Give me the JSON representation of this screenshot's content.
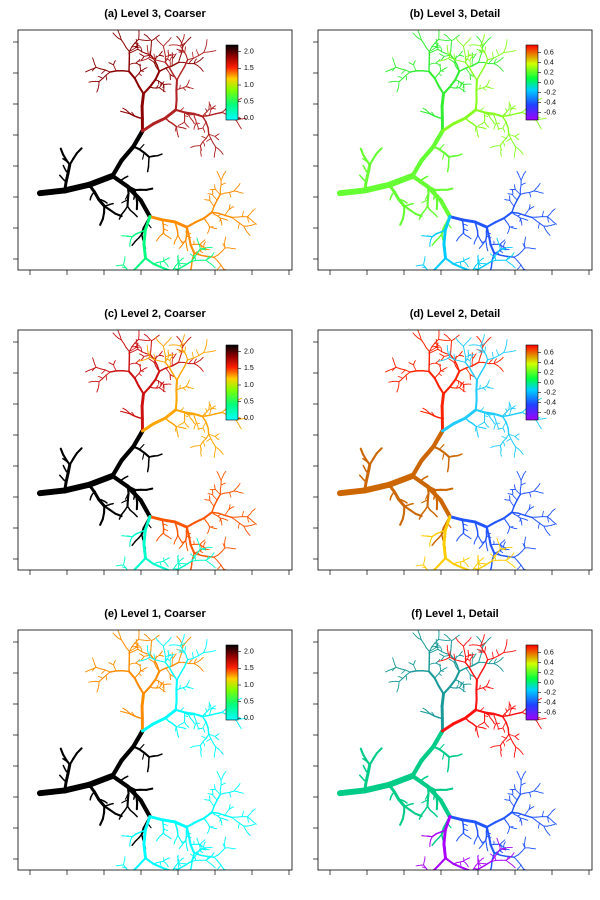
{
  "panels": [
    {
      "title": "(a) Level 3, Coarser",
      "clim": [
        -0.05,
        2.2
      ],
      "colorbar_ticks": [
        {
          "value": 2,
          "label": "2.0"
        },
        {
          "value": 1.5,
          "label": "1.5"
        },
        {
          "value": 1,
          "label": "1.0"
        },
        {
          "value": 0.5,
          "label": "0.5"
        },
        {
          "value": 0,
          "label": "0.0"
        }
      ]
    },
    {
      "title": "(b) Level 3, Detail",
      "clim": [
        -0.75,
        0.75
      ],
      "colorbar_ticks": [
        {
          "value": 0.6,
          "label": "0.6"
        },
        {
          "value": 0.4,
          "label": "0.4"
        },
        {
          "value": 0.2,
          "label": "0.2"
        },
        {
          "value": 0,
          "label": "0.0"
        },
        -0.2,
        -0.4,
        -0.6
      ]
    },
    {
      "title": "(c) Level 2, Coarser",
      "clim": [
        -0.05,
        2.2
      ],
      "colorbar_ticks": [
        {
          "value": 2,
          "label": "2.0"
        },
        {
          "value": 1.5,
          "label": "1.5"
        },
        {
          "value": 1,
          "label": "1.0"
        },
        {
          "value": 0.5,
          "label": "0.5"
        },
        {
          "value": 0,
          "label": "0.0"
        }
      ]
    },
    {
      "title": "(d) Level 2, Detail",
      "clim": [
        -0.75,
        0.75
      ],
      "colorbar_ticks": [
        {
          "value": 0.6,
          "label": "0.6"
        },
        {
          "value": 0.4,
          "label": "0.4"
        },
        {
          "value": 0.2,
          "label": "0.2"
        },
        {
          "value": 0,
          "label": "0.0"
        },
        -0.2,
        -0.4,
        -0.6
      ]
    },
    {
      "title": "(e) Level 1, Coarser",
      "clim": [
        -0.05,
        2.2
      ],
      "colorbar_ticks": [
        {
          "value": 2,
          "label": "2.0"
        },
        {
          "value": 1.5,
          "label": "1.5"
        },
        {
          "value": 1,
          "label": "1.0"
        },
        {
          "value": 0.5,
          "label": "0.5"
        },
        {
          "value": 0,
          "label": "0.0"
        }
      ]
    },
    {
      "title": "(f) Level 1, Detail",
      "clim": [
        -0.75,
        0.75
      ],
      "colorbar_ticks": [
        {
          "value": 0.6,
          "label": "0.6"
        },
        {
          "value": 0.4,
          "label": "0.4"
        },
        {
          "value": 0.2,
          "label": "0.2"
        },
        {
          "value": 0,
          "label": "0.0"
        },
        -0.2,
        -0.4,
        -0.6
      ]
    }
  ]
}
